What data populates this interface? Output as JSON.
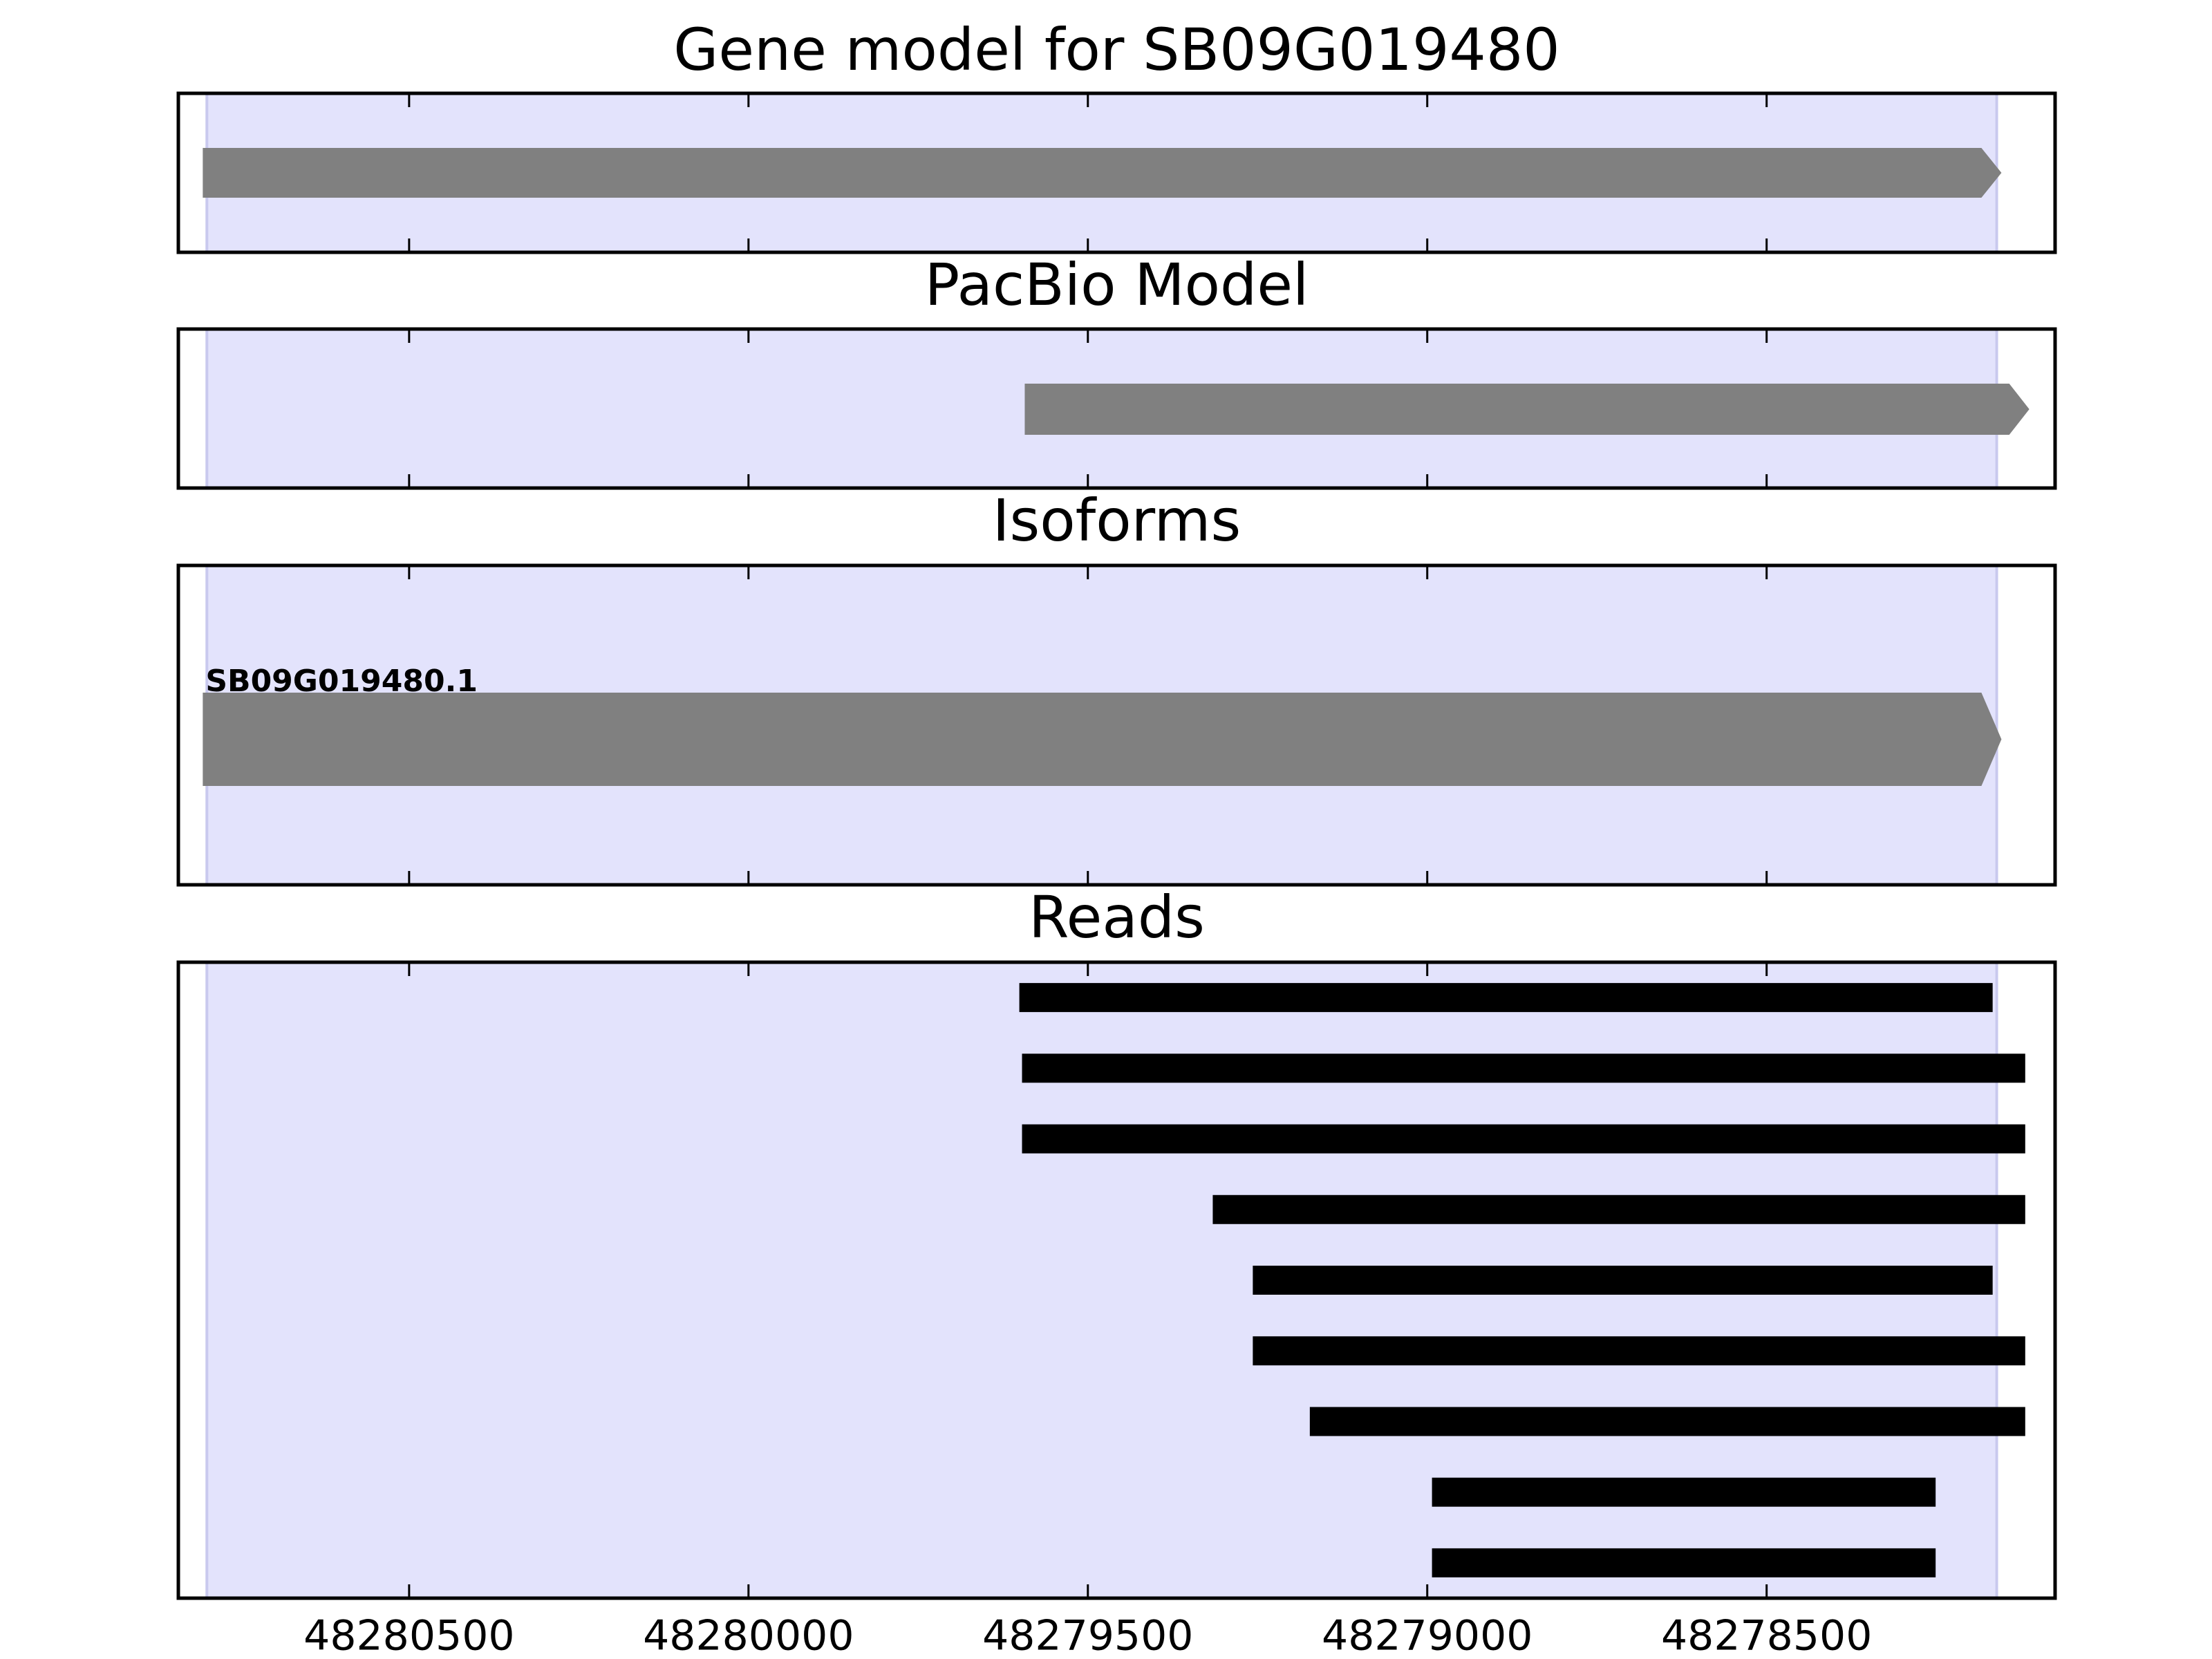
{
  "chart_data": [
    {
      "type": "arrow",
      "title": "Gene model for SB09G019480",
      "xlim": [
        48280840,
        48278075
      ],
      "xticks": [
        48280500,
        48280000,
        48279500,
        48279000,
        48278500
      ],
      "highlight": [
        48280798,
        48278161
      ],
      "highlight_color": "#e3e3fc",
      "color": "#808080",
      "features": [
        {
          "start": 48280804,
          "end": 48278154
        }
      ]
    },
    {
      "type": "arrow",
      "title": "PacBio Model",
      "xlim": [
        48280840,
        48278075
      ],
      "xticks": [
        48280500,
        48280000,
        48279500,
        48279000,
        48278500
      ],
      "highlight": [
        48280798,
        48278161
      ],
      "highlight_color": "#e3e3fc",
      "color": "#808080",
      "features": [
        {
          "start": 48279593,
          "end": 48278113
        }
      ]
    },
    {
      "type": "arrow",
      "title": "Isoforms",
      "xlim": [
        48280840,
        48278075
      ],
      "xticks": [
        48280500,
        48280000,
        48279500,
        48279000,
        48278500
      ],
      "highlight": [
        48280798,
        48278161
      ],
      "highlight_color": "#e3e3fc",
      "color": "#808080",
      "features": [
        {
          "start": 48280804,
          "end": 48278154,
          "label": "SB09G019480.1"
        }
      ]
    },
    {
      "type": "reads",
      "title": "Reads",
      "xlim": [
        48280840,
        48278075
      ],
      "xticks": [
        48280500,
        48280000,
        48279500,
        48279000,
        48278500
      ],
      "highlight": [
        48280798,
        48278161
      ],
      "highlight_color": "#e3e3fc",
      "color": "#000000",
      "features": [
        {
          "start": 48279601,
          "end": 48278167
        },
        {
          "start": 48279597,
          "end": 48278119
        },
        {
          "start": 48279597,
          "end": 48278119
        },
        {
          "start": 48279316,
          "end": 48278119
        },
        {
          "start": 48279257,
          "end": 48278167
        },
        {
          "start": 48279257,
          "end": 48278119
        },
        {
          "start": 48279173,
          "end": 48278119
        },
        {
          "start": 48278993,
          "end": 48278251
        },
        {
          "start": 48278993,
          "end": 48278251
        }
      ]
    }
  ]
}
